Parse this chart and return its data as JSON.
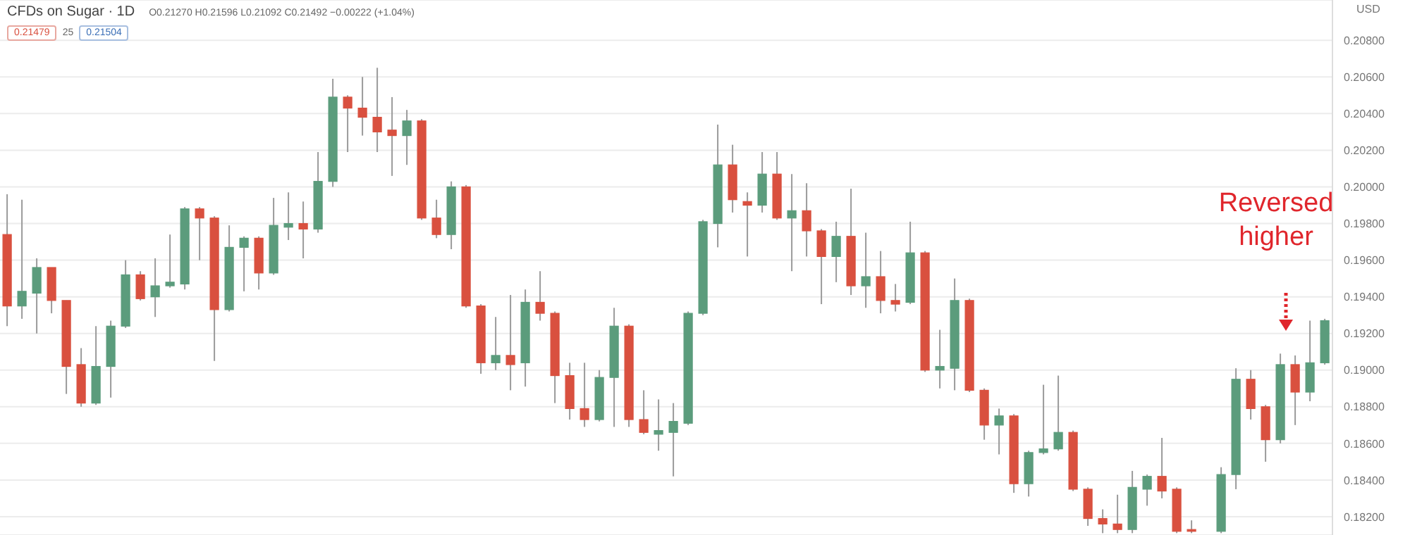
{
  "chart_data": {
    "type": "candlestick",
    "title": "CFDs on Sugar · 1D",
    "subtitle": "O0.21270 H0.21596 L0.21092 C0.21492 −0.00222 (+1.04%)",
    "ylabel": "USD",
    "annotations": [
      "0.21479",
      "25",
      "0.21504",
      "Reversed higher"
    ],
    "categories": [
      null,
      null,
      null,
      null,
      null,
      null,
      null,
      null,
      null,
      null,
      null,
      null,
      null,
      null,
      null,
      null,
      null,
      null,
      null,
      null,
      null,
      null,
      null,
      null,
      null,
      null,
      null,
      null,
      null,
      null,
      null,
      null,
      null,
      null,
      null,
      null,
      null,
      null,
      null,
      null,
      null,
      null,
      null,
      null,
      null,
      null,
      null,
      null,
      null,
      null,
      null,
      null,
      null,
      null,
      null,
      null,
      null,
      null,
      null,
      null,
      null,
      null,
      null,
      null,
      null,
      null,
      null,
      null,
      null,
      null,
      null,
      null,
      null,
      null,
      null,
      null,
      null,
      null,
      null,
      null,
      null,
      null,
      null,
      null,
      null,
      null,
      null,
      null,
      null,
      null
    ],
    "ohlc": [
      [
        0.1974,
        0.1996,
        0.1924,
        0.1935
      ],
      [
        0.1935,
        0.1993,
        0.1928,
        0.1943
      ],
      [
        0.1942,
        0.1961,
        0.192,
        0.1956
      ],
      [
        0.1956,
        0.1956,
        0.1931,
        0.1938
      ],
      [
        0.1938,
        0.1938,
        0.1887,
        0.1902
      ],
      [
        0.1903,
        0.1912,
        0.188,
        0.1882
      ],
      [
        0.1882,
        0.1924,
        0.1881,
        0.1902
      ],
      [
        0.1902,
        0.1927,
        0.1885,
        0.1924
      ],
      [
        0.1924,
        0.196,
        0.1923,
        0.1952
      ],
      [
        0.1952,
        0.1954,
        0.1938,
        0.1939
      ],
      [
        0.194,
        0.1961,
        0.1929,
        0.1946
      ],
      [
        0.1946,
        0.1974,
        0.1945,
        0.1948
      ],
      [
        0.1947,
        0.1989,
        0.1944,
        0.1988
      ],
      [
        0.1988,
        0.1989,
        0.196,
        0.1983
      ],
      [
        0.1983,
        0.1984,
        0.1905,
        0.1933
      ],
      [
        0.1933,
        0.1979,
        0.1932,
        0.1967
      ],
      [
        0.1967,
        0.1973,
        0.1943,
        0.1972
      ],
      [
        0.1972,
        0.1973,
        0.1944,
        0.1953
      ],
      [
        0.1953,
        0.1994,
        0.1952,
        0.1979
      ],
      [
        0.1978,
        0.1997,
        0.1971,
        0.198
      ],
      [
        0.198,
        0.1992,
        0.1961,
        0.1977
      ],
      [
        0.1977,
        0.2019,
        0.1975,
        0.2003
      ],
      [
        0.2003,
        0.2059,
        0.2,
        0.2049
      ],
      [
        0.2049,
        0.205,
        0.2019,
        0.2043
      ],
      [
        0.2043,
        0.206,
        0.2028,
        0.2038
      ],
      [
        0.2038,
        0.2065,
        0.2019,
        0.203
      ],
      [
        0.2031,
        0.2049,
        0.2006,
        0.2028
      ],
      [
        0.2028,
        0.2042,
        0.2012,
        0.2036
      ],
      [
        0.2036,
        0.2037,
        0.1982,
        0.1983
      ],
      [
        0.1983,
        0.1993,
        0.1972,
        0.1974
      ],
      [
        0.1974,
        0.2003,
        0.1966,
        0.2
      ],
      [
        0.2,
        0.2001,
        0.1934,
        0.1935
      ],
      [
        0.1935,
        0.1936,
        0.1898,
        0.1904
      ],
      [
        0.1904,
        0.1929,
        0.19,
        0.1908
      ],
      [
        0.1908,
        0.1941,
        0.1889,
        0.1903
      ],
      [
        0.1904,
        0.1944,
        0.1891,
        0.1937
      ],
      [
        0.1937,
        0.1954,
        0.1927,
        0.1931
      ],
      [
        0.1931,
        0.1932,
        0.1882,
        0.1897
      ],
      [
        0.1897,
        0.1904,
        0.1873,
        0.1879
      ],
      [
        0.1879,
        0.1904,
        0.1869,
        0.1873
      ],
      [
        0.1873,
        0.19,
        0.1872,
        0.1896
      ],
      [
        0.1896,
        0.1934,
        0.1869,
        0.1924
      ],
      [
        0.1924,
        0.1925,
        0.1869,
        0.1873
      ],
      [
        0.1873,
        0.1889,
        0.1865,
        0.1866
      ],
      [
        0.1865,
        0.1884,
        0.1856,
        0.1867
      ],
      [
        0.1866,
        0.1882,
        0.1842,
        0.1872
      ],
      [
        0.1871,
        0.1932,
        0.187,
        0.1931
      ],
      [
        0.1931,
        0.1982,
        0.193,
        0.1981
      ],
      [
        0.198,
        0.2034,
        0.1967,
        0.2012
      ],
      [
        0.2012,
        0.2023,
        0.1986,
        0.1993
      ],
      [
        0.1992,
        0.1997,
        0.1962,
        0.199
      ],
      [
        0.199,
        0.2019,
        0.1986,
        0.2007
      ],
      [
        0.2007,
        0.2019,
        0.1982,
        0.1983
      ],
      [
        0.1983,
        0.2007,
        0.1954,
        0.1987
      ],
      [
        0.1987,
        0.2002,
        0.1962,
        0.1976
      ],
      [
        0.1976,
        0.1977,
        0.1936,
        0.1962
      ],
      [
        0.1962,
        0.1981,
        0.1948,
        0.1973
      ],
      [
        0.1973,
        0.1999,
        0.1941,
        0.1946
      ],
      [
        0.1946,
        0.1975,
        0.1934,
        0.1951
      ],
      [
        0.1951,
        0.1965,
        0.1931,
        0.1938
      ],
      [
        0.1938,
        0.1947,
        0.1932,
        0.1936
      ],
      [
        0.1937,
        0.1981,
        0.1936,
        0.1964
      ],
      [
        0.1964,
        0.1965,
        0.1899,
        0.19
      ],
      [
        0.19,
        0.1922,
        0.189,
        0.1902
      ],
      [
        0.1901,
        0.195,
        0.1889,
        0.1938
      ],
      [
        0.1938,
        0.1939,
        0.1888,
        0.1889
      ],
      [
        0.1889,
        0.189,
        0.1862,
        0.187
      ],
      [
        0.187,
        0.1879,
        0.1854,
        0.1875
      ],
      [
        0.1875,
        0.1876,
        0.1833,
        0.1838
      ],
      [
        0.1838,
        0.1856,
        0.1831,
        0.1855
      ],
      [
        0.1855,
        0.1892,
        0.1854,
        0.1857
      ],
      [
        0.1857,
        0.1897,
        0.1856,
        0.1866
      ],
      [
        0.1866,
        0.1867,
        0.1834,
        0.1835
      ],
      [
        0.1835,
        0.1836,
        0.1815,
        0.1819
      ],
      [
        0.1819,
        0.1824,
        0.1811,
        0.1816
      ],
      [
        0.1816,
        0.1832,
        0.1811,
        0.1813
      ],
      [
        0.1813,
        0.1845,
        0.1811,
        0.1836
      ],
      [
        0.1835,
        0.1843,
        0.1826,
        0.1842
      ],
      [
        0.1842,
        0.1863,
        0.183,
        0.1834
      ],
      [
        0.1835,
        0.1836,
        0.1811,
        0.1812
      ],
      [
        0.1813,
        0.1818,
        0.1811,
        0.1812
      ],
      null,
      [
        0.1812,
        0.1847,
        0.1811,
        0.1843
      ],
      [
        0.1843,
        0.1901,
        0.1835,
        0.1895
      ],
      [
        0.1895,
        0.19,
        0.1873,
        0.1879
      ],
      [
        0.188,
        0.1881,
        0.185,
        0.1862
      ],
      [
        0.1862,
        0.1909,
        0.186,
        0.1903
      ],
      [
        0.1903,
        0.1908,
        0.187,
        0.1888
      ],
      [
        0.1888,
        0.1927,
        0.1883,
        0.1904
      ],
      [
        0.1904,
        0.1928,
        0.1903,
        0.1927
      ]
    ],
    "colors": [
      "#d9503f",
      "#5b9c7c",
      "#5b9c7c",
      "#d9503f",
      "#d9503f",
      "#d9503f",
      "#5b9c7c",
      "#5b9c7c",
      "#5b9c7c",
      "#d9503f",
      "#5b9c7c",
      "#5b9c7c",
      "#5b9c7c",
      "#d9503f",
      "#d9503f",
      "#5b9c7c",
      "#5b9c7c",
      "#d9503f",
      "#5b9c7c",
      "#5b9c7c",
      "#d9503f",
      "#5b9c7c",
      "#5b9c7c",
      "#d9503f",
      "#d9503f",
      "#d9503f",
      "#d9503f",
      "#5b9c7c",
      "#d9503f",
      "#d9503f",
      "#5b9c7c",
      "#d9503f",
      "#d9503f",
      "#5b9c7c",
      "#d9503f",
      "#5b9c7c",
      "#d9503f",
      "#d9503f",
      "#d9503f",
      "#d9503f",
      "#5b9c7c",
      "#5b9c7c",
      "#d9503f",
      "#d9503f",
      "#5b9c7c",
      "#5b9c7c",
      "#5b9c7c",
      "#5b9c7c",
      "#5b9c7c",
      "#d9503f",
      "#d9503f",
      "#5b9c7c",
      "#d9503f",
      "#5b9c7c",
      "#d9503f",
      "#d9503f",
      "#5b9c7c",
      "#d9503f",
      "#5b9c7c",
      "#d9503f",
      "#d9503f",
      "#5b9c7c",
      "#d9503f",
      "#5b9c7c",
      "#5b9c7c",
      "#d9503f",
      "#d9503f",
      "#5b9c7c",
      "#d9503f",
      "#5b9c7c",
      "#5b9c7c",
      "#5b9c7c",
      "#d9503f",
      "#d9503f",
      "#d9503f",
      "#d9503f",
      "#5b9c7c",
      "#5b9c7c",
      "#d9503f",
      "#d9503f",
      "#d9503f",
      null,
      "#5b9c7c",
      "#5b9c7c",
      "#d9503f",
      "#d9503f",
      "#5b9c7c",
      "#d9503f",
      "#5b9c7c",
      "#5b9c7c"
    ],
    "ylim": [
      0.181,
      0.2102
    ],
    "yticks": [
      {
        "value": 0.182,
        "label": "0.18200"
      },
      {
        "value": 0.184,
        "label": "0.18400"
      },
      {
        "value": 0.186,
        "label": "0.18600"
      },
      {
        "value": 0.188,
        "label": "0.18800"
      },
      {
        "value": 0.19,
        "label": "0.19000"
      },
      {
        "value": 0.192,
        "label": "0.19200"
      },
      {
        "value": 0.194,
        "label": "0.19400"
      },
      {
        "value": 0.196,
        "label": "0.19600"
      },
      {
        "value": 0.198,
        "label": "0.19800"
      },
      {
        "value": 0.2,
        "label": "0.20000"
      },
      {
        "value": 0.202,
        "label": "0.20200"
      },
      {
        "value": 0.204,
        "label": "0.20400"
      },
      {
        "value": 0.206,
        "label": "0.20600"
      },
      {
        "value": 0.208,
        "label": "0.20800"
      }
    ],
    "grid": "y"
  }
}
